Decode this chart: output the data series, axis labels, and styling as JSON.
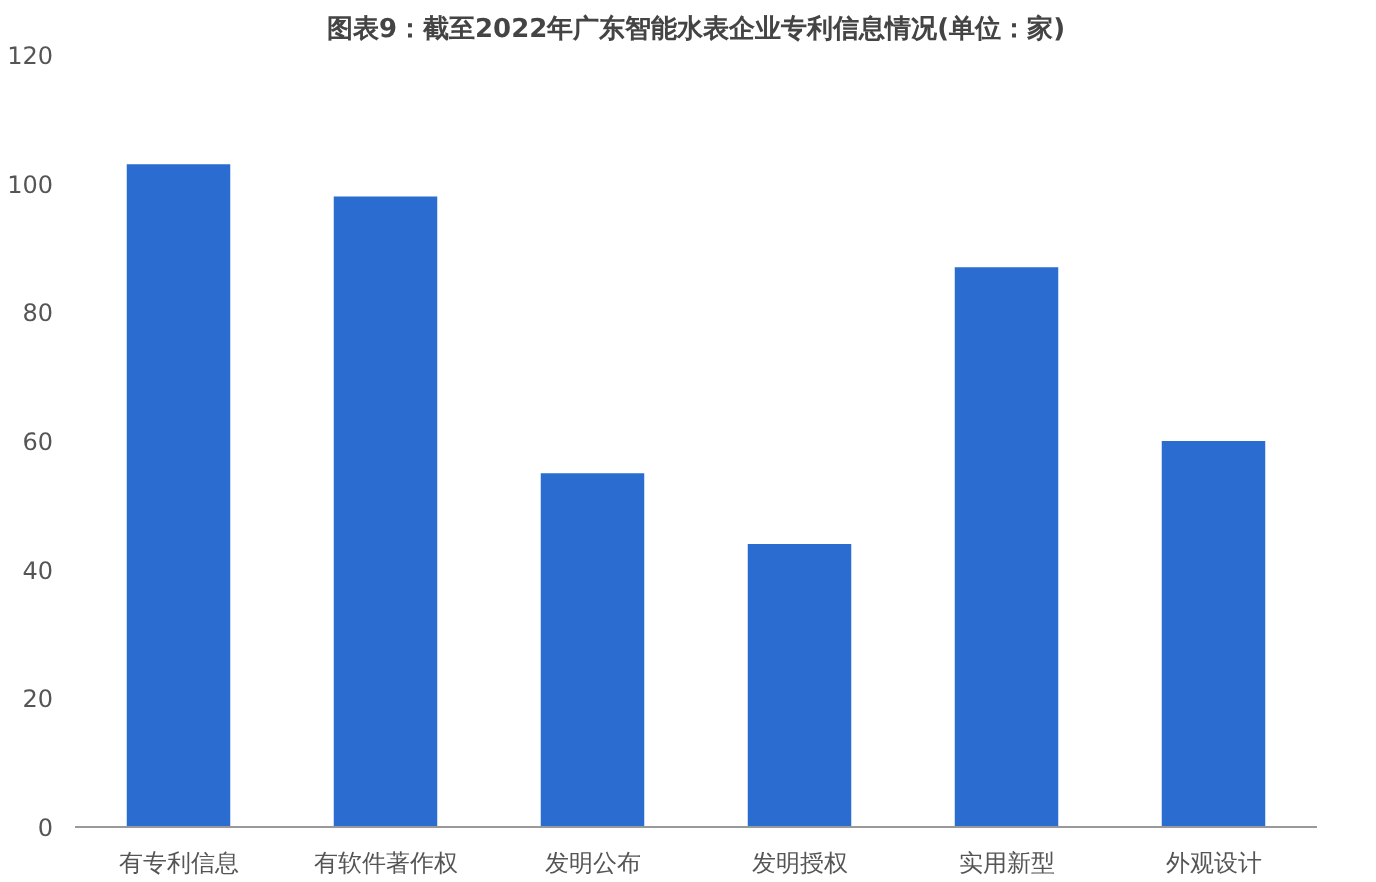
{
  "chart_data": {
    "type": "bar",
    "title": "图表9：截至2022年广东智能水表企业专利信息情况(单位：家)",
    "categories": [
      "有专利信息",
      "有软件著作权",
      "发明公布",
      "发明授权",
      "实用新型",
      "外观设计"
    ],
    "values": [
      103,
      98,
      55,
      44,
      87,
      60
    ],
    "color": "#2a6ccf",
    "ylim": [
      0,
      120
    ],
    "yticks": [
      0,
      20,
      40,
      60,
      80,
      100,
      120
    ],
    "grid": false
  }
}
